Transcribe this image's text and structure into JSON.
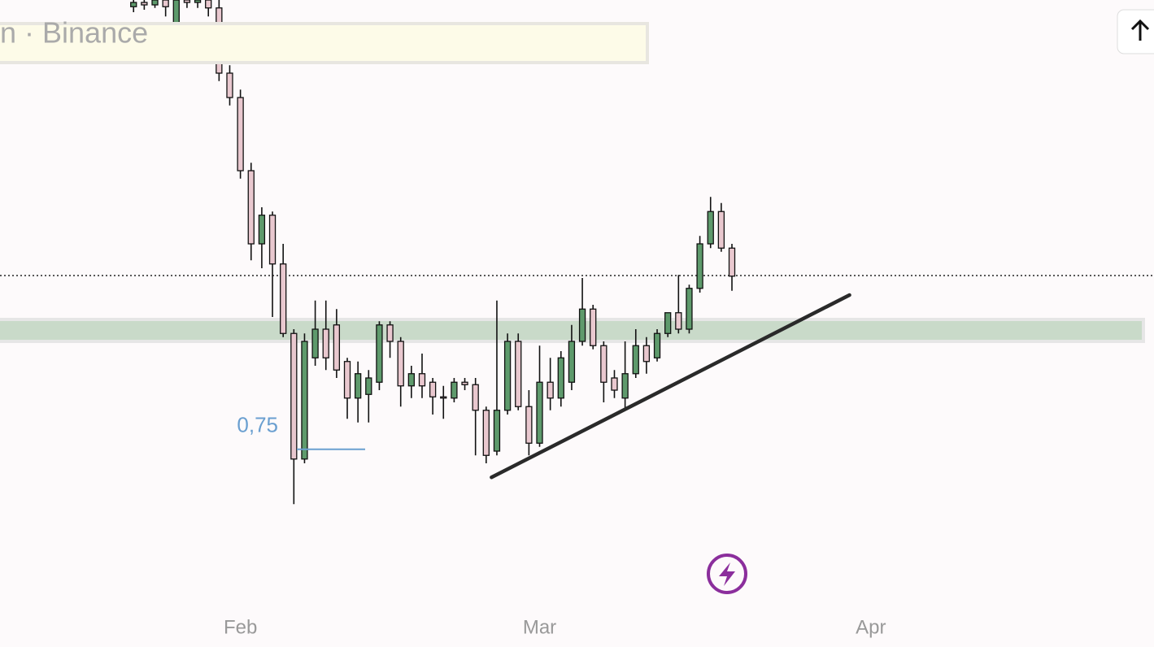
{
  "chart_data": {
    "type": "candlestick",
    "source_label": "n · Binance",
    "candles": [
      [
        98.9,
        100.7,
        98,
        99.6
      ],
      [
        99.6,
        100,
        98.4,
        99.2
      ],
      [
        99.2,
        100.7,
        98.7,
        100
      ],
      [
        100,
        100.7,
        97.3,
        98.9
      ],
      [
        94.9,
        100.7,
        93.3,
        100
      ],
      [
        100,
        100.7,
        98.7,
        99.6
      ],
      [
        99.6,
        100.7,
        98.7,
        100
      ],
      [
        100,
        100.7,
        97.3,
        98.7
      ],
      [
        98.7,
        100,
        86.7,
        88
      ],
      [
        88,
        89.3,
        82.7,
        84
      ],
      [
        84,
        85.3,
        70.7,
        72
      ],
      [
        72,
        73.3,
        57.3,
        60
      ],
      [
        60,
        66,
        56,
        64.7
      ],
      [
        64.7,
        65.3,
        48,
        56.7
      ],
      [
        56.7,
        60,
        44.7,
        45.3
      ],
      [
        45.3,
        46,
        17.3,
        24.7
      ],
      [
        24.7,
        45.3,
        24,
        44
      ],
      [
        41.3,
        50.7,
        40,
        46
      ],
      [
        46,
        50.7,
        39.3,
        41.3
      ],
      [
        46.7,
        49.3,
        38,
        39.3
      ],
      [
        40.7,
        41.3,
        31.3,
        34.7
      ],
      [
        34.7,
        40.7,
        30.7,
        38.7
      ],
      [
        35.3,
        39.3,
        30.7,
        38
      ],
      [
        37.3,
        47.3,
        36,
        46.7
      ],
      [
        46.7,
        47.3,
        41.3,
        44
      ],
      [
        44,
        44.7,
        33.3,
        36.7
      ],
      [
        36.7,
        40,
        34.7,
        38.7
      ],
      [
        38.7,
        42,
        34.7,
        36.7
      ],
      [
        37.3,
        38,
        32,
        34.9
      ],
      [
        34.9,
        36.7,
        31.3,
        34.7
      ],
      [
        34.7,
        38,
        34,
        37.3
      ],
      [
        37.3,
        38,
        36,
        36.9
      ],
      [
        36.9,
        38,
        25.3,
        32.7
      ],
      [
        32.7,
        33.3,
        24,
        25.3
      ],
      [
        26,
        50.7,
        25.3,
        32.7
      ],
      [
        32.7,
        45.3,
        32,
        44
      ],
      [
        44,
        45.3,
        32.7,
        33.3
      ],
      [
        33.3,
        36,
        25.3,
        27.3
      ],
      [
        27.3,
        43.3,
        26.7,
        37.3
      ],
      [
        37.3,
        41.3,
        32.7,
        34.7
      ],
      [
        34.7,
        42.4,
        33.3,
        41.3
      ],
      [
        37.3,
        46.7,
        36,
        44
      ],
      [
        44,
        54.4,
        43.3,
        49.3
      ],
      [
        49.3,
        50,
        42.7,
        43.3
      ],
      [
        43.3,
        44,
        34,
        37.3
      ],
      [
        38,
        39.3,
        34.7,
        36
      ],
      [
        34.7,
        44,
        32.7,
        38.7
      ],
      [
        38.7,
        46,
        38,
        43.3
      ],
      [
        43.3,
        44.7,
        38.7,
        40.7
      ],
      [
        41.3,
        46,
        40.7,
        45.3
      ],
      [
        45.3,
        48.7,
        44.7,
        48.7
      ],
      [
        48.7,
        54.9,
        45.3,
        46
      ],
      [
        46,
        53.3,
        45.3,
        52.7
      ],
      [
        52.7,
        61.3,
        52,
        60
      ],
      [
        60,
        67.7,
        59.3,
        65.3
      ],
      [
        65.3,
        66.7,
        58.7,
        59.3
      ],
      [
        59.3,
        60,
        52.3,
        54.7
      ]
    ],
    "up_color": "#5e9a6c",
    "down_color": "#e9c8cf",
    "xlim": [
      -12.5,
      95.5
    ],
    "ylim": [
      0,
      100
    ],
    "xticks": [
      {
        "value": 10,
        "label": "Feb"
      },
      {
        "value": 38,
        "label": "Mar"
      },
      {
        "value": 69,
        "label": "Apr"
      }
    ],
    "price_line": 54.8,
    "zone": [
      44,
      47.6
    ],
    "zone_color": "#c9dac9",
    "level": {
      "value": 26.3,
      "label": "0,75"
    },
    "level_color": "#6a9fd0",
    "trendline": {
      "x": [
        33.5,
        67
      ],
      "y": [
        21.7,
        51.6
      ]
    }
  }
}
